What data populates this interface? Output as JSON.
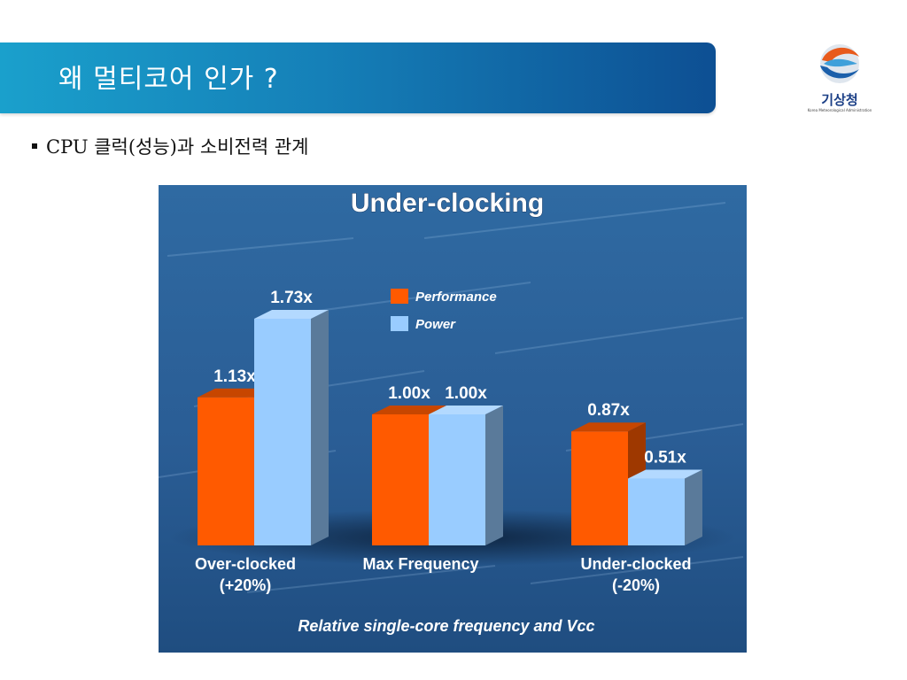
{
  "slide": {
    "title": "왜 멀티코어 인가 ?",
    "bullet": "CPU 클럭(성능)과 소비전력 관계"
  },
  "logo": {
    "name": "기상청",
    "subtitle": "Korea Meteorological Administration",
    "icon": "kma-emblem-icon"
  },
  "colors": {
    "title_bar_start": "#1aa0cc",
    "title_bar_end": "#0d4f93",
    "chart_bg": "#2a5a8e",
    "performance": "#ff5a00",
    "power": "#99ccff"
  },
  "chart_data": {
    "type": "bar",
    "title": "Under-clocking",
    "xlabel": "Relative single-core frequency and Vcc",
    "ylabel": "",
    "categories": [
      "Over-clocked\n(+20%)",
      "Max Frequency",
      "Under-clocked\n(-20%)"
    ],
    "series": [
      {
        "name": "Performance",
        "color": "#ff5a00",
        "values": [
          1.13,
          1.0,
          0.87
        ],
        "labels": [
          "1.13x",
          "1.00x",
          "0.87x"
        ]
      },
      {
        "name": "Power",
        "color": "#99ccff",
        "values": [
          1.73,
          1.0,
          0.51
        ],
        "labels": [
          "1.73x",
          "1.00x",
          "0.51x"
        ]
      }
    ],
    "legend": "top-center",
    "grid": false
  }
}
